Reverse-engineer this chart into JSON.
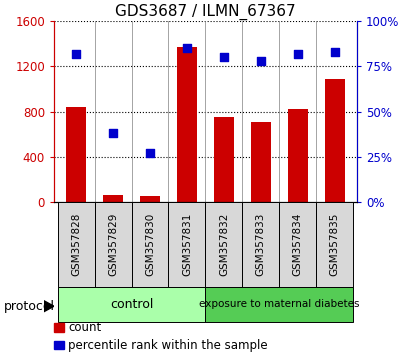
{
  "title": "GDS3687 / ILMN_67367",
  "samples": [
    "GSM357828",
    "GSM357829",
    "GSM357830",
    "GSM357831",
    "GSM357832",
    "GSM357833",
    "GSM357834",
    "GSM357835"
  ],
  "counts": [
    840,
    60,
    55,
    1370,
    750,
    710,
    820,
    1090
  ],
  "percentile_ranks": [
    82,
    38,
    27,
    85,
    80,
    78,
    82,
    83
  ],
  "left_ylim": [
    0,
    1600
  ],
  "right_ylim": [
    0,
    100
  ],
  "left_yticks": [
    0,
    400,
    800,
    1200,
    1600
  ],
  "right_yticks": [
    0,
    25,
    50,
    75,
    100
  ],
  "left_yticklabels": [
    "0",
    "400",
    "800",
    "1200",
    "1600"
  ],
  "right_yticklabels": [
    "0%",
    "25%",
    "50%",
    "75%",
    "100%"
  ],
  "bar_color": "#cc0000",
  "dot_color": "#0000cc",
  "control_label": "control",
  "treatment_label": "exposure to maternal diabetes",
  "control_color": "#aaffaa",
  "treatment_color": "#55cc55",
  "protocol_label": "protocol",
  "legend_count_label": "count",
  "legend_pct_label": "percentile rank within the sample",
  "left_axis_color": "#cc0000",
  "right_axis_color": "#0000cc"
}
